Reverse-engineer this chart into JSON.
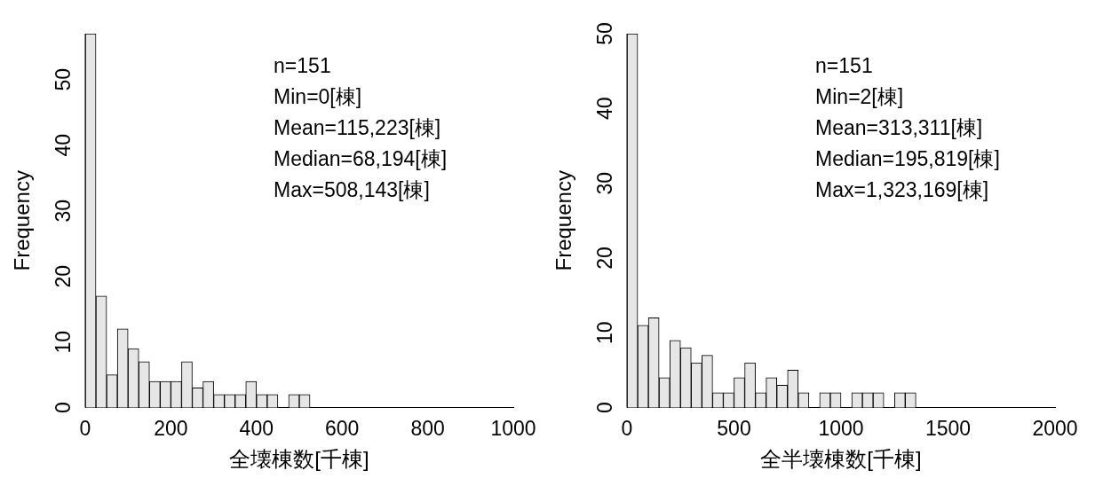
{
  "chart_data": [
    {
      "type": "histogram",
      "xlabel": "全壊棟数[千棟]",
      "ylabel": "Frequency",
      "color": "#e6e6e6",
      "bins": [
        0,
        25,
        50,
        75,
        100,
        125,
        150,
        175,
        200,
        225,
        250,
        275,
        300,
        325,
        350,
        375,
        400,
        425,
        450,
        475,
        500,
        525
      ],
      "values": [
        57,
        17,
        5,
        12,
        9,
        7,
        4,
        4,
        4,
        7,
        3,
        4,
        2,
        2,
        2,
        4,
        2,
        2,
        0,
        2,
        2
      ],
      "xlim": [
        0,
        1000
      ],
      "xticks": [
        0,
        200,
        400,
        600,
        800,
        1000
      ],
      "ylim": [
        0,
        57
      ],
      "yticks": [
        0,
        10,
        20,
        30,
        40,
        50
      ],
      "grid": false,
      "legend": false,
      "annotations": [
        "n=151",
        "Min=0[棟]",
        "Mean=115,223[棟]",
        "Median=68,194[棟]",
        "Max=508,143[棟]"
      ]
    },
    {
      "type": "histogram",
      "xlabel": "全半壊棟数[千棟]",
      "ylabel": "Frequency",
      "color": "#e6e6e6",
      "bins": [
        0,
        50,
        100,
        150,
        200,
        250,
        300,
        350,
        400,
        450,
        500,
        550,
        600,
        650,
        700,
        750,
        800,
        850,
        900,
        950,
        1000,
        1050,
        1100,
        1150,
        1200,
        1250,
        1300,
        1350
      ],
      "values": [
        50,
        11,
        12,
        4,
        9,
        8,
        6,
        7,
        2,
        2,
        4,
        6,
        2,
        4,
        3,
        5,
        2,
        0,
        2,
        2,
        0,
        2,
        2,
        2,
        0,
        2,
        2
      ],
      "xlim": [
        0,
        2000
      ],
      "xticks": [
        0,
        500,
        1000,
        1500,
        2000
      ],
      "ylim": [
        0,
        50
      ],
      "yticks": [
        0,
        10,
        20,
        30,
        40,
        50
      ],
      "grid": false,
      "legend": false,
      "annotations": [
        "n=151",
        "Min=2[棟]",
        "Mean=313,311[棟]",
        "Median=195,819[棟]",
        "Max=1,323,169[棟]"
      ]
    }
  ]
}
